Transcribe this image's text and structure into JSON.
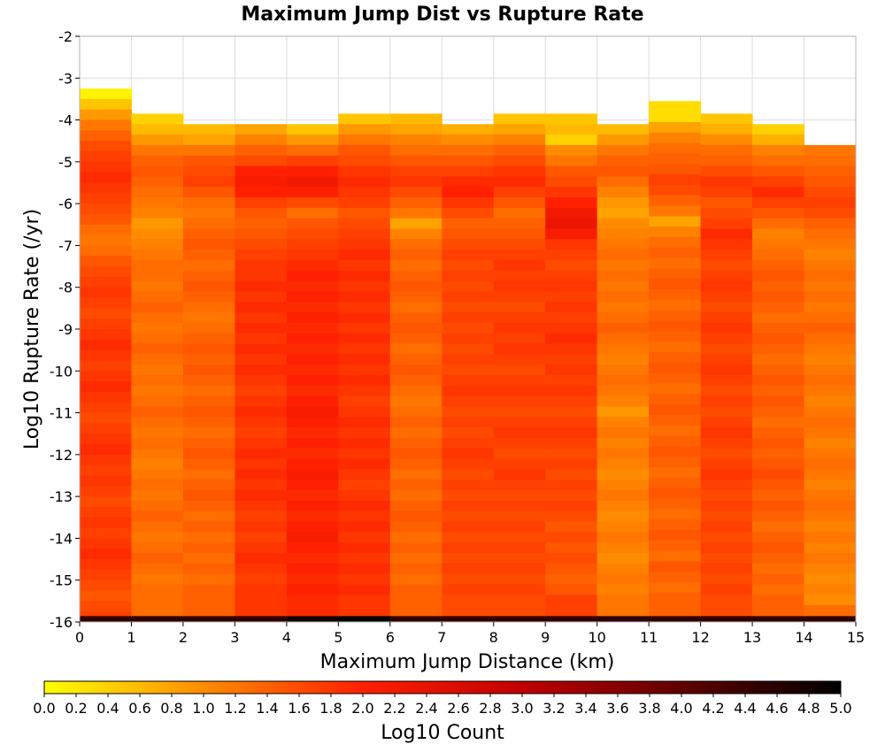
{
  "chart_data": {
    "type": "heatmap",
    "title": "Maximum Jump Dist vs Rupture Rate",
    "xlabel": "Maximum Jump Distance (km)",
    "ylabel": "Log10 Rupture Rate (/yr)",
    "xlim": [
      0,
      15
    ],
    "ylim": [
      -16,
      -2
    ],
    "x_ticks": [
      "0",
      "1",
      "2",
      "3",
      "4",
      "5",
      "6",
      "7",
      "8",
      "9",
      "10",
      "11",
      "12",
      "13",
      "14",
      "15"
    ],
    "y_ticks": [
      "-2",
      "-3",
      "-4",
      "-5",
      "-6",
      "-7",
      "-8",
      "-9",
      "-10",
      "-11",
      "-12",
      "-13",
      "-14",
      "-15",
      "-16"
    ],
    "bin_width_x": 1,
    "bin_height_y": 0.25,
    "colorbar": {
      "label": "Log10 Count",
      "range": [
        0,
        5
      ],
      "ticks": [
        "0.0",
        "0.2",
        "0.4",
        "0.6",
        "0.8",
        "1.0",
        "1.2",
        "1.4",
        "1.6",
        "1.8",
        "2.0",
        "2.2",
        "2.4",
        "2.6",
        "2.8",
        "3.0",
        "3.2",
        "3.4",
        "3.6",
        "3.8",
        "4.0",
        "4.2",
        "4.4",
        "4.6",
        "4.8",
        "5.0"
      ],
      "colors": [
        "#ffff00",
        "#ff8c00",
        "#ff2000",
        "#c00000",
        "#600000",
        "#000000"
      ]
    },
    "columns": [
      {
        "x": 0,
        "top": -3.25,
        "base": 1.8,
        "profile": [
          0.1,
          0.5,
          0.9,
          1.2,
          1.4,
          1.6,
          1.7,
          1.8,
          1.9,
          1.8,
          1.7,
          1.6,
          1.5,
          1.3,
          1.2,
          1.3,
          1.5,
          1.6,
          1.7,
          1.8,
          1.7,
          1.6,
          1.7,
          1.8,
          1.9,
          1.8,
          1.7,
          1.8,
          1.9,
          1.8,
          1.7,
          1.6,
          1.7,
          1.8,
          1.9,
          1.8,
          1.7,
          1.8,
          1.7,
          1.6,
          1.7,
          1.8,
          1.7,
          1.8,
          1.9,
          1.8,
          1.7,
          1.6,
          1.5,
          1.6,
          1.7
        ],
        "bottom_count": 4.5
      },
      {
        "x": 1,
        "top": -3.85,
        "base": 1.3,
        "profile": [
          0.4,
          0.6,
          0.9,
          1.2,
          1.4,
          1.5,
          1.4,
          1.3,
          1.2,
          1.1,
          0.9,
          1.0,
          1.1,
          1.2,
          1.3,
          1.3,
          1.2,
          1.3,
          1.4,
          1.3,
          1.2,
          1.3,
          1.4,
          1.3,
          1.2,
          1.3,
          1.2,
          1.3,
          1.4,
          1.3,
          1.2,
          1.3,
          1.2,
          1.1,
          1.2,
          1.3,
          1.2,
          1.3,
          1.4,
          1.3,
          1.2,
          1.3,
          1.4,
          1.3,
          1.2,
          1.3
        ],
        "bottom_count": 4.5
      },
      {
        "x": 2,
        "top": -4.1,
        "base": 1.4,
        "profile": [
          0.6,
          0.8,
          1.2,
          1.5,
          1.6,
          1.7,
          1.5,
          1.3,
          1.2,
          1.3,
          1.4,
          1.5,
          1.4,
          1.3,
          1.4,
          1.5,
          1.4,
          1.3,
          1.2,
          1.3,
          1.4,
          1.5,
          1.4,
          1.5,
          1.4,
          1.3,
          1.4,
          1.5,
          1.4,
          1.3,
          1.4,
          1.5,
          1.4,
          1.3,
          1.4,
          1.5,
          1.4,
          1.3,
          1.4,
          1.3,
          1.4,
          1.3,
          1.4,
          1.3,
          1.4
        ],
        "bottom_count": 4.5
      },
      {
        "x": 3,
        "top": -4.1,
        "base": 1.8,
        "profile": [
          0.8,
          1.1,
          1.4,
          1.6,
          2.0,
          2.1,
          2.0,
          1.7,
          1.5,
          1.4,
          1.5,
          1.6,
          1.7,
          1.8,
          1.8,
          1.9,
          1.8,
          1.9,
          1.8,
          1.9,
          1.8,
          1.9,
          1.8,
          1.9,
          1.8,
          1.7,
          1.8,
          1.9,
          1.8,
          1.7,
          1.8,
          1.9,
          1.8,
          1.9,
          1.8,
          1.9,
          1.8,
          1.7,
          1.8,
          1.7,
          1.8,
          1.9,
          1.8,
          1.7,
          1.8
        ],
        "bottom_count": 4.5
      },
      {
        "x": 4,
        "top": -4.1,
        "base": 1.9,
        "profile": [
          0.5,
          0.9,
          1.3,
          1.7,
          2.0,
          2.2,
          2.0,
          1.6,
          1.3,
          1.5,
          1.6,
          1.7,
          1.8,
          1.9,
          2.0,
          1.9,
          2.0,
          1.9,
          2.0,
          1.9,
          2.0,
          1.9,
          2.0,
          1.9,
          2.0,
          1.9,
          2.0,
          2.1,
          2.0,
          1.9,
          2.0,
          1.9,
          2.0,
          2.1,
          2.0,
          1.9,
          2.0,
          1.9,
          2.0,
          2.1,
          2.0,
          1.9,
          2.0,
          1.9,
          2.0
        ],
        "bottom_count": 4.8
      },
      {
        "x": 5,
        "top": -3.85,
        "base": 1.8,
        "profile": [
          0.5,
          0.9,
          1.2,
          1.5,
          1.6,
          1.8,
          1.9,
          1.8,
          1.7,
          1.5,
          1.6,
          1.7,
          1.8,
          1.9,
          1.8,
          1.9,
          1.8,
          1.9,
          1.8,
          1.9,
          1.8,
          1.9,
          1.8,
          1.9,
          1.8,
          1.9,
          1.8,
          1.7,
          1.8,
          1.9,
          1.8,
          1.9,
          1.8,
          1.9,
          1.8,
          1.7,
          1.8,
          1.9,
          1.8,
          1.9,
          1.8,
          1.9,
          1.8,
          1.9,
          1.8,
          1.9
        ],
        "bottom_count": 5.0
      },
      {
        "x": 6,
        "top": -3.85,
        "base": 1.4,
        "profile": [
          0.6,
          0.8,
          1.1,
          1.3,
          1.5,
          1.7,
          1.8,
          1.6,
          1.4,
          1.2,
          0.8,
          1.1,
          1.3,
          1.4,
          1.3,
          1.4,
          1.5,
          1.4,
          1.3,
          1.4,
          1.5,
          1.4,
          1.3,
          1.4,
          1.5,
          1.4,
          1.3,
          1.2,
          1.3,
          1.4,
          1.3,
          1.4,
          1.5,
          1.4,
          1.3,
          1.4,
          1.3,
          1.4,
          1.5,
          1.4,
          1.3,
          1.4,
          1.3,
          1.4,
          1.3,
          1.4
        ],
        "bottom_count": 4.5
      },
      {
        "x": 7,
        "top": -4.1,
        "base": 1.6,
        "profile": [
          0.7,
          1.0,
          1.3,
          1.5,
          1.7,
          1.9,
          2.0,
          1.8,
          1.6,
          1.4,
          1.5,
          1.6,
          1.7,
          1.6,
          1.7,
          1.6,
          1.7,
          1.6,
          1.7,
          1.6,
          1.7,
          1.6,
          1.7,
          1.6,
          1.7,
          1.8,
          1.7,
          1.6,
          1.7,
          1.6,
          1.7,
          1.8,
          1.7,
          1.6,
          1.7,
          1.6,
          1.7,
          1.6,
          1.7,
          1.6,
          1.7,
          1.6,
          1.7,
          1.6,
          1.7
        ],
        "bottom_count": 4.5
      },
      {
        "x": 8,
        "top": -3.85,
        "base": 1.6,
        "profile": [
          0.5,
          0.8,
          1.1,
          1.4,
          1.6,
          1.8,
          1.9,
          1.7,
          1.5,
          1.3,
          1.4,
          1.5,
          1.6,
          1.7,
          1.8,
          1.7,
          1.8,
          1.7,
          1.6,
          1.7,
          1.8,
          1.7,
          1.8,
          1.7,
          1.6,
          1.7,
          1.8,
          1.7,
          1.6,
          1.7,
          1.8,
          1.7,
          1.6,
          1.7,
          1.8,
          1.7,
          1.6,
          1.7,
          1.6,
          1.7,
          1.6,
          1.7,
          1.6,
          1.7,
          1.6,
          1.7
        ],
        "bottom_count": 4.5
      },
      {
        "x": 9,
        "top": -3.85,
        "base": 1.7,
        "profile": [
          0.5,
          0.6,
          0.4,
          1.0,
          1.2,
          1.5,
          1.6,
          1.8,
          2.0,
          2.2,
          2.3,
          2.1,
          1.8,
          1.7,
          1.6,
          1.7,
          1.8,
          1.7,
          1.8,
          1.7,
          1.8,
          1.9,
          1.8,
          1.7,
          1.8,
          1.7,
          1.8,
          1.7,
          1.6,
          1.7,
          1.8,
          1.7,
          1.6,
          1.7,
          1.6,
          1.7,
          1.6,
          1.7,
          1.6,
          1.5,
          1.6,
          1.5,
          1.6,
          1.5,
          1.4,
          1.5
        ],
        "bottom_count": 4.5
      },
      {
        "x": 10,
        "top": -4.1,
        "base": 1.2,
        "profile": [
          0.6,
          0.9,
          1.2,
          1.4,
          1.5,
          1.3,
          1.1,
          0.9,
          0.8,
          1.0,
          1.1,
          1.2,
          1.3,
          1.2,
          1.3,
          1.2,
          1.3,
          1.2,
          1.3,
          1.4,
          1.3,
          1.2,
          1.1,
          1.2,
          1.3,
          1.2,
          1.1,
          0.9,
          1.1,
          1.2,
          1.1,
          1.2,
          1.1,
          1.0,
          1.1,
          1.2,
          1.1,
          1.0,
          1.1,
          1.2,
          1.1,
          1.0,
          1.1,
          1.2,
          1.1
        ],
        "bottom_count": 4.5
      },
      {
        "x": 11,
        "top": -3.55,
        "base": 1.4,
        "profile": [
          0.3,
          0.3,
          0.8,
          1.1,
          1.3,
          1.4,
          1.5,
          1.7,
          1.6,
          1.4,
          1.2,
          0.8,
          1.1,
          1.3,
          1.4,
          1.3,
          1.4,
          1.5,
          1.4,
          1.3,
          1.4,
          1.5,
          1.4,
          1.3,
          1.4,
          1.5,
          1.4,
          1.3,
          1.4,
          1.5,
          1.4,
          1.3,
          1.4,
          1.5,
          1.4,
          1.3,
          1.4,
          1.5,
          1.4,
          1.3,
          1.4,
          1.5,
          1.4,
          1.3,
          1.5,
          1.4,
          1.3,
          1.4
        ],
        "bottom_count": 4.5
      },
      {
        "x": 12,
        "top": -3.85,
        "base": 1.6,
        "profile": [
          0.5,
          0.7,
          1.0,
          1.3,
          1.4,
          1.6,
          1.8,
          1.7,
          1.5,
          1.6,
          1.7,
          1.9,
          1.8,
          1.7,
          1.6,
          1.7,
          1.8,
          1.7,
          1.6,
          1.7,
          1.8,
          1.7,
          1.6,
          1.7,
          1.8,
          1.7,
          1.6,
          1.7,
          1.6,
          1.7,
          1.8,
          1.7,
          1.6,
          1.7,
          1.8,
          1.7,
          1.6,
          1.7,
          1.6,
          1.7,
          1.6,
          1.7,
          1.6,
          1.7,
          1.6,
          1.7
        ],
        "bottom_count": 4.5
      },
      {
        "x": 13,
        "top": -4.1,
        "base": 1.4,
        "profile": [
          0.4,
          0.7,
          1.1,
          1.3,
          1.5,
          1.7,
          1.9,
          1.7,
          1.5,
          1.3,
          1.1,
          1.2,
          1.3,
          1.4,
          1.5,
          1.4,
          1.5,
          1.4,
          1.3,
          1.4,
          1.5,
          1.4,
          1.3,
          1.4,
          1.5,
          1.4,
          1.5,
          1.4,
          1.3,
          1.4,
          1.5,
          1.4,
          1.5,
          1.6,
          1.5,
          1.4,
          1.5,
          1.4,
          1.3,
          1.4,
          1.5,
          1.4,
          1.3,
          1.4,
          1.3
        ],
        "bottom_count": 4.5
      },
      {
        "x": 14,
        "top": -4.6,
        "base": 1.3,
        "profile": [
          1.2,
          1.3,
          1.4,
          1.5,
          1.6,
          1.7,
          1.6,
          1.4,
          1.3,
          1.2,
          1.1,
          1.2,
          1.3,
          1.2,
          1.3,
          1.2,
          1.3,
          1.4,
          1.3,
          1.2,
          1.1,
          1.2,
          1.3,
          1.2,
          1.1,
          1.2,
          1.3,
          1.2,
          1.1,
          1.2,
          1.3,
          1.2,
          1.1,
          1.2,
          1.3,
          1.2,
          1.1,
          1.2,
          1.1,
          1.2,
          1.1,
          1.0,
          1.1,
          1.0
        ],
        "bottom_count": 4.5
      }
    ]
  }
}
